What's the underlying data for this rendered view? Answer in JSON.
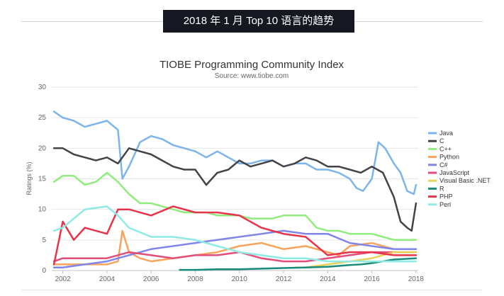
{
  "page": {
    "banner": "2018 年 1 月 Top 10 语言的趋势"
  },
  "chart_data": {
    "type": "line",
    "title": "TIOBE Programming Community Index",
    "subtitle": "Source: www.tiobe.com",
    "xlabel": "",
    "ylabel": "Ratings (%)",
    "xlim": [
      2001.5,
      2018.1
    ],
    "ylim": [
      0,
      30
    ],
    "x_ticks": [
      "2002",
      "2004",
      "2006",
      "2008",
      "2010",
      "2012",
      "2014",
      "2016",
      "2018"
    ],
    "y_ticks": [
      "0",
      "5",
      "10",
      "15",
      "20",
      "25",
      "30"
    ],
    "grid": true,
    "legend": "right",
    "series": [
      {
        "name": "Java",
        "color": "#7cb5ec",
        "x": [
          2001.6,
          2002,
          2002.5,
          2003,
          2003.5,
          2004,
          2004.5,
          2004.7,
          2005,
          2005.5,
          2006,
          2006.5,
          2007,
          2007.5,
          2008,
          2008.5,
          2009,
          2009.5,
          2010,
          2010.5,
          2011,
          2011.5,
          2012,
          2012.5,
          2013,
          2013.5,
          2014,
          2014.5,
          2015,
          2015.3,
          2015.6,
          2016,
          2016.3,
          2016.6,
          2017,
          2017.3,
          2017.6,
          2017.9,
          2018
        ],
        "y": [
          26,
          25,
          24.5,
          23.5,
          24,
          24.5,
          23,
          15,
          17,
          21,
          22,
          21.5,
          20.5,
          20,
          19.5,
          18.5,
          19.5,
          18.5,
          17.5,
          17.5,
          18,
          18,
          17,
          17.5,
          17.5,
          16.5,
          16.5,
          16,
          15,
          13.5,
          13,
          15,
          21,
          20,
          17.5,
          16,
          13,
          12.5,
          14
        ]
      },
      {
        "name": "C",
        "color": "#434348",
        "x": [
          2001.6,
          2002,
          2002.5,
          2003,
          2003.5,
          2004,
          2004.5,
          2005,
          2005.5,
          2006,
          2006.5,
          2007,
          2007.5,
          2008,
          2008.5,
          2009,
          2009.5,
          2010,
          2010.5,
          2011,
          2011.5,
          2012,
          2012.5,
          2013,
          2013.5,
          2014,
          2014.5,
          2015,
          2015.5,
          2016,
          2016.5,
          2017,
          2017.3,
          2017.6,
          2017.8,
          2018
        ],
        "y": [
          20,
          20,
          19,
          18.5,
          18,
          18.5,
          17.5,
          20,
          19.5,
          19,
          18,
          17,
          16.5,
          16.5,
          14,
          16,
          16.5,
          18,
          17,
          17.5,
          18,
          17,
          17.5,
          18.5,
          18,
          17,
          17,
          16.5,
          16,
          17,
          16,
          12,
          8,
          7,
          6.5,
          11
        ]
      },
      {
        "name": "C++",
        "color": "#90ed7d",
        "x": [
          2001.6,
          2002,
          2002.5,
          2003,
          2003.5,
          2004,
          2004.5,
          2005,
          2005.5,
          2006,
          2006.5,
          2007,
          2007.5,
          2008,
          2008.5,
          2009,
          2009.5,
          2010,
          2010.5,
          2011,
          2011.5,
          2012,
          2012.5,
          2013,
          2013.5,
          2014,
          2014.5,
          2015,
          2015.5,
          2016,
          2016.5,
          2017,
          2017.5,
          2018
        ],
        "y": [
          14.5,
          15.5,
          15.5,
          14,
          14.5,
          16,
          14.5,
          12.5,
          11,
          11,
          10.5,
          10,
          9.5,
          9.5,
          9.5,
          9,
          9,
          9,
          8.5,
          8.5,
          8.5,
          9,
          9,
          9,
          7,
          6.5,
          6.5,
          6,
          6,
          6,
          5.5,
          5,
          5,
          5
        ]
      },
      {
        "name": "Python",
        "color": "#f7a35c",
        "x": [
          2001.6,
          2002,
          2003,
          2003.5,
          2004,
          2004.5,
          2004.7,
          2005,
          2005.5,
          2006,
          2007,
          2008,
          2009,
          2010,
          2011,
          2012,
          2013,
          2014,
          2014.5,
          2015,
          2016,
          2017,
          2018
        ],
        "y": [
          1,
          1,
          1,
          1,
          1,
          1.5,
          6.5,
          3,
          2,
          1.5,
          2,
          2.5,
          3,
          4,
          4.5,
          3.5,
          4,
          3,
          2.5,
          4,
          4.5,
          3.5,
          3.5
        ]
      },
      {
        "name": "C#",
        "color": "#8085e9",
        "x": [
          2001.6,
          2002,
          2003,
          2004,
          2004.5,
          2005,
          2006,
          2007,
          2008,
          2009,
          2010,
          2011,
          2012,
          2013,
          2014,
          2015,
          2016,
          2017,
          2018
        ],
        "y": [
          0.5,
          0.5,
          1,
          1.5,
          2,
          2.5,
          3.5,
          4,
          4.5,
          5,
          5.5,
          6,
          6.5,
          6,
          6,
          4.5,
          4,
          3.5,
          3.5
        ]
      },
      {
        "name": "JavaScript",
        "color": "#e44d79",
        "x": [
          2001.6,
          2002,
          2003,
          2004,
          2005,
          2006,
          2007,
          2008,
          2009,
          2010,
          2011,
          2012,
          2013,
          2014,
          2015,
          2016,
          2017,
          2018
        ],
        "y": [
          1.5,
          2,
          2,
          2,
          3,
          2.5,
          2,
          2.5,
          2.5,
          3,
          2,
          1.5,
          1.5,
          2,
          2.5,
          3,
          3,
          3
        ]
      },
      {
        "name": "Visual Basic .NET",
        "color": "#e4d354",
        "x": [
          2012.5,
          2013,
          2014,
          2015,
          2016,
          2017,
          2018
        ],
        "y": [
          0.5,
          0.5,
          1,
          1.5,
          2,
          3,
          3
        ]
      },
      {
        "name": "R",
        "color": "#1a8a7a",
        "x": [
          2007.3,
          2008,
          2009,
          2010,
          2011,
          2012,
          2013,
          2014,
          2015,
          2015.5,
          2016,
          2017,
          2018
        ],
        "y": [
          0.1,
          0.1,
          0.2,
          0.2,
          0.3,
          0.4,
          0.5,
          0.6,
          0.9,
          1,
          1.2,
          1.8,
          2
        ]
      },
      {
        "name": "PHP",
        "color": "#e8334a",
        "x": [
          2001.6,
          2002,
          2002.5,
          2003,
          2004,
          2004.5,
          2005,
          2006,
          2007,
          2008,
          2009,
          2010,
          2011,
          2011.5,
          2012,
          2013,
          2014,
          2015,
          2016,
          2017,
          2018
        ],
        "y": [
          1,
          8,
          5,
          7,
          6,
          10,
          10,
          9,
          10.5,
          9.5,
          9.5,
          9,
          7,
          6.5,
          6,
          5.5,
          2.5,
          3,
          3,
          2.5,
          2.5
        ]
      },
      {
        "name": "Perl",
        "color": "#8eebe4",
        "x": [
          2001.6,
          2002,
          2003,
          2004,
          2004.5,
          2005,
          2006,
          2007,
          2008,
          2009,
          2010,
          2011,
          2012,
          2013,
          2014,
          2015,
          2016,
          2017,
          2018
        ],
        "y": [
          6.5,
          7,
          10,
          10.5,
          9,
          7,
          5.5,
          5.5,
          5,
          4,
          3,
          2.5,
          2,
          2,
          1.5,
          1.5,
          1.5,
          1.5,
          1.5
        ]
      }
    ]
  }
}
